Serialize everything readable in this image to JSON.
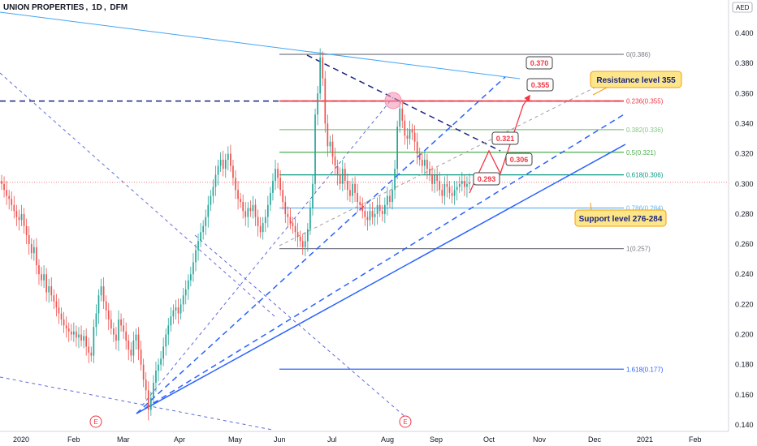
{
  "header": {
    "symbol": "UNION PROPERTIES",
    "interval": "1D",
    "exchange": "DFM",
    "currency": "AED"
  },
  "chart_data": {
    "type": "candlestick",
    "ylim": [
      0.135,
      0.426
    ],
    "y_ticks": [
      "0.400",
      "0.380",
      "0.360",
      "0.340",
      "0.320",
      "0.300",
      "0.280",
      "0.260",
      "0.240",
      "0.220",
      "0.200",
      "0.180",
      "0.160",
      "0.140"
    ],
    "x_ticks": [
      "2020",
      "Feb",
      "Mar",
      "Apr",
      "May",
      "Jun",
      "Jul",
      "Aug",
      "Sep",
      "Oct",
      "Nov",
      "Dec",
      "2021",
      "Feb"
    ],
    "last_price_line": 0.301,
    "closes": [
      0.3,
      0.296,
      0.292,
      0.29,
      0.286,
      0.282,
      0.278,
      0.276,
      0.28,
      0.272,
      0.266,
      0.26,
      0.254,
      0.258,
      0.246,
      0.24,
      0.236,
      0.24,
      0.228,
      0.232,
      0.226,
      0.222,
      0.218,
      0.214,
      0.21,
      0.206,
      0.204,
      0.202,
      0.2,
      0.202,
      0.198,
      0.2,
      0.196,
      0.199,
      0.192,
      0.188,
      0.186,
      0.205,
      0.214,
      0.226,
      0.232,
      0.222,
      0.216,
      0.21,
      0.204,
      0.2,
      0.196,
      0.21,
      0.206,
      0.202,
      0.196,
      0.19,
      0.186,
      0.196,
      0.2,
      0.19,
      0.18,
      0.17,
      0.163,
      0.15,
      0.158,
      0.168,
      0.176,
      0.18,
      0.184,
      0.192,
      0.2,
      0.206,
      0.212,
      0.216,
      0.218,
      0.214,
      0.22,
      0.226,
      0.23,
      0.236,
      0.24,
      0.248,
      0.256,
      0.262,
      0.268,
      0.272,
      0.278,
      0.286,
      0.292,
      0.298,
      0.306,
      0.312,
      0.316,
      0.31,
      0.316,
      0.32,
      0.312,
      0.304,
      0.296,
      0.29,
      0.288,
      0.282,
      0.278,
      0.284,
      0.282,
      0.286,
      0.278,
      0.272,
      0.268,
      0.274,
      0.278,
      0.286,
      0.294,
      0.302,
      0.31,
      0.304,
      0.296,
      0.288,
      0.28,
      0.278,
      0.274,
      0.272,
      0.268,
      0.265,
      0.262,
      0.258,
      0.262,
      0.27,
      0.284,
      0.3,
      0.346,
      0.36,
      0.384,
      0.37,
      0.34,
      0.325,
      0.328,
      0.318,
      0.312,
      0.306,
      0.3,
      0.31,
      0.302,
      0.296,
      0.292,
      0.3,
      0.294,
      0.288,
      0.286,
      0.282,
      0.278,
      0.276,
      0.282,
      0.278,
      0.28,
      0.286,
      0.282,
      0.28,
      0.286,
      0.292,
      0.288,
      0.296,
      0.31,
      0.338,
      0.35,
      0.342,
      0.332,
      0.33,
      0.336,
      0.334,
      0.328,
      0.32,
      0.316,
      0.312,
      0.316,
      0.31,
      0.306,
      0.3,
      0.306,
      0.302,
      0.296,
      0.292,
      0.3,
      0.298,
      0.294,
      0.292,
      0.296,
      0.298,
      0.3,
      0.302,
      0.298,
      0.3,
      0.301
    ],
    "fib_levels": [
      {
        "label": "0(0.386)",
        "value": 0.386,
        "color": "#787b86"
      },
      {
        "label": "0.236(0.355)",
        "value": 0.355,
        "color": "#f23645"
      },
      {
        "label": "0.382(0.336)",
        "value": 0.336,
        "color": "#81c784"
      },
      {
        "label": "0.5(0.321)",
        "value": 0.321,
        "color": "#4caf50"
      },
      {
        "label": "0.618(0.306)",
        "value": 0.306,
        "color": "#089981"
      },
      {
        "label": "0.786(0.284)",
        "value": 0.284,
        "color": "#64b5f6"
      },
      {
        "label": "1(0.257)",
        "value": 0.257,
        "color": "#787b86"
      },
      {
        "label": "1.618(0.177)",
        "value": 0.177,
        "color": "#2962ff"
      }
    ],
    "projection_points": [
      "0.293",
      "0.321",
      "0.306",
      "0.355",
      "0.370"
    ],
    "annotations": [
      {
        "text": "Resistance level 355"
      },
      {
        "text": "Support level 276-284"
      }
    ],
    "event_markers": [
      "E",
      "E"
    ],
    "colors": {
      "up": "#26a69a",
      "down": "#ef5350",
      "trend": "#2962ff",
      "channel": "#5e6bd8",
      "resistance": "#1e88e5",
      "callout_bg": "#fde68a",
      "callout_border": "#f59e0b",
      "projection": "#f23645"
    }
  }
}
